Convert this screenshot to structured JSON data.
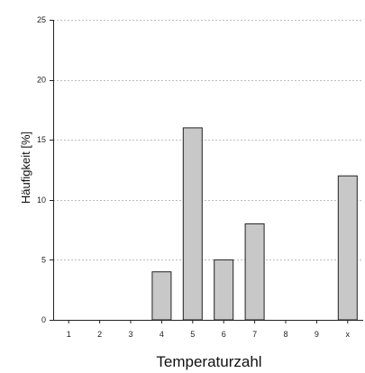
{
  "chart_data": {
    "type": "bar",
    "title": "",
    "xlabel": "Temperaturzahl",
    "ylabel": "Häufigkeit [%]",
    "categories": [
      "1",
      "2",
      "3",
      "4",
      "5",
      "6",
      "7",
      "8",
      "9",
      "x"
    ],
    "values": [
      0,
      0,
      0,
      4,
      16,
      5,
      8,
      0,
      0,
      12
    ],
    "ylim": [
      0,
      25
    ],
    "yticks": [
      "0",
      "5",
      "10",
      "15",
      "20",
      "25"
    ],
    "grid": true,
    "legend": "none",
    "colors": {
      "bar_fill": "#c8c8c8",
      "bar_stroke": "#222222",
      "grid": "#bdbdbd",
      "axis": "#222222"
    }
  }
}
